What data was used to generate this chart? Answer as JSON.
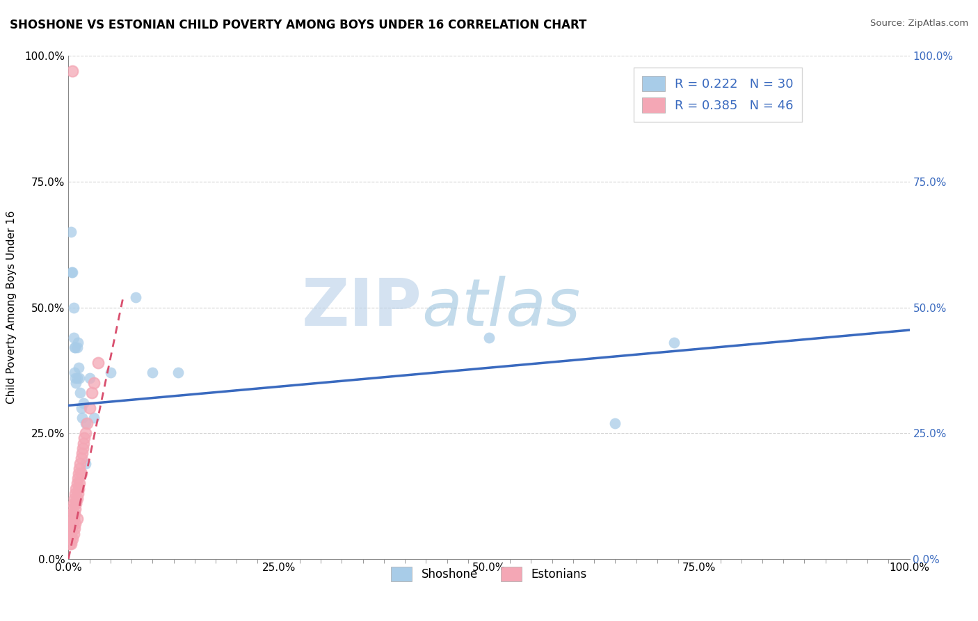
{
  "title": "SHOSHONE VS ESTONIAN CHILD POVERTY AMONG BOYS UNDER 16 CORRELATION CHART",
  "source": "Source: ZipAtlas.com",
  "ylabel": "Child Poverty Among Boys Under 16",
  "watermark_zip": "ZIP",
  "watermark_atlas": "atlas",
  "xlim": [
    0,
    1
  ],
  "ylim": [
    0,
    1
  ],
  "xtick_labels": [
    "0.0%",
    "25.0%",
    "50.0%",
    "75.0%",
    "100.0%"
  ],
  "xtick_values": [
    0,
    0.25,
    0.5,
    0.75,
    1.0
  ],
  "ytick_labels": [
    "0.0%",
    "25.0%",
    "50.0%",
    "75.0%",
    "100.0%"
  ],
  "ytick_right_labels": [
    "0.0%",
    "25.0%",
    "50.0%",
    "75.0%",
    "100.0%"
  ],
  "ytick_values": [
    0,
    0.25,
    0.5,
    0.75,
    1.0
  ],
  "shoshone_color": "#a8cce8",
  "estonian_color": "#f4a7b5",
  "shoshone_R": 0.222,
  "shoshone_N": 30,
  "estonian_R": 0.385,
  "estonian_N": 46,
  "shoshone_line_color": "#3a6abf",
  "estonian_line_color": "#d94f6e",
  "legend_R_color": "#3a6abf",
  "background_color": "#ffffff",
  "grid_color": "#d0d0d0",
  "shoshone_x": [
    0.003,
    0.004,
    0.005,
    0.006,
    0.006,
    0.007,
    0.007,
    0.008,
    0.008,
    0.009,
    0.01,
    0.01,
    0.011,
    0.012,
    0.013,
    0.014,
    0.015,
    0.016,
    0.018,
    0.02,
    0.025,
    0.03,
    0.05,
    0.08,
    0.1,
    0.13,
    0.5,
    0.65,
    0.72,
    0.02
  ],
  "shoshone_y": [
    0.65,
    0.57,
    0.57,
    0.5,
    0.44,
    0.42,
    0.37,
    0.42,
    0.36,
    0.35,
    0.42,
    0.36,
    0.43,
    0.38,
    0.36,
    0.33,
    0.3,
    0.28,
    0.31,
    0.27,
    0.36,
    0.28,
    0.37,
    0.52,
    0.37,
    0.37,
    0.44,
    0.27,
    0.43,
    0.19
  ],
  "estonian_x": [
    0.001,
    0.001,
    0.002,
    0.002,
    0.003,
    0.003,
    0.003,
    0.004,
    0.004,
    0.005,
    0.005,
    0.005,
    0.006,
    0.006,
    0.006,
    0.007,
    0.007,
    0.007,
    0.008,
    0.008,
    0.008,
    0.009,
    0.009,
    0.01,
    0.01,
    0.01,
    0.011,
    0.011,
    0.012,
    0.012,
    0.013,
    0.013,
    0.014,
    0.015,
    0.015,
    0.016,
    0.017,
    0.018,
    0.019,
    0.02,
    0.022,
    0.025,
    0.028,
    0.03,
    0.035,
    0.005
  ],
  "estonian_y": [
    0.05,
    0.03,
    0.07,
    0.04,
    0.08,
    0.05,
    0.03,
    0.09,
    0.06,
    0.1,
    0.07,
    0.04,
    0.11,
    0.08,
    0.05,
    0.12,
    0.09,
    0.06,
    0.13,
    0.1,
    0.07,
    0.14,
    0.11,
    0.15,
    0.12,
    0.08,
    0.16,
    0.13,
    0.17,
    0.14,
    0.18,
    0.15,
    0.19,
    0.2,
    0.17,
    0.21,
    0.22,
    0.23,
    0.24,
    0.25,
    0.27,
    0.3,
    0.33,
    0.35,
    0.39,
    0.97
  ],
  "shoshone_line_x": [
    0.0,
    1.0
  ],
  "shoshone_line_y": [
    0.305,
    0.455
  ],
  "estonian_line_x": [
    0.0,
    0.065
  ],
  "estonian_line_y": [
    0.0,
    0.52
  ]
}
